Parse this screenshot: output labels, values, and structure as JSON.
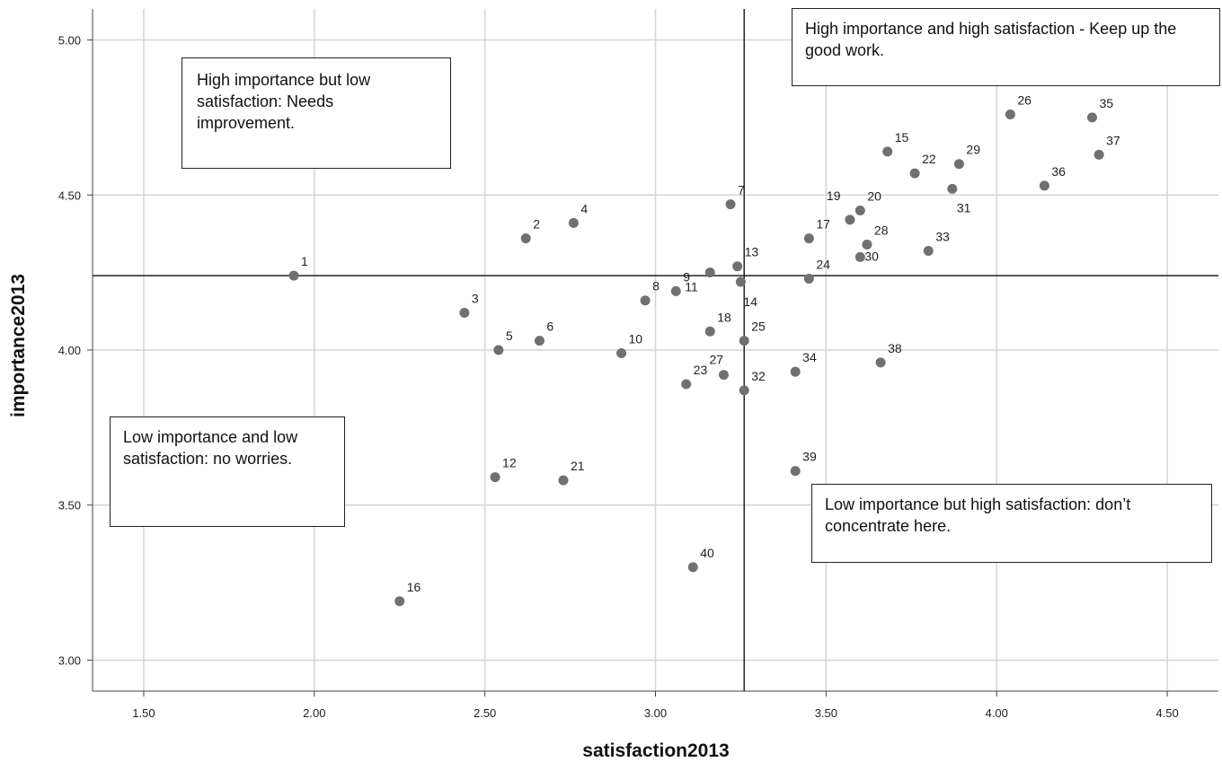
{
  "chart_data": {
    "type": "scatter",
    "xlabel": "satisfaction2013",
    "ylabel": "importance2013",
    "xlim": [
      1.35,
      4.65
    ],
    "ylim": [
      2.9,
      5.1
    ],
    "xticks": [
      "1.50",
      "2.00",
      "2.50",
      "3.00",
      "3.50",
      "4.00",
      "4.50"
    ],
    "yticks": [
      "3.00",
      "3.50",
      "4.00",
      "4.50",
      "5.00"
    ],
    "grid": true,
    "point_color": "#707070",
    "reference_lines": {
      "x": 3.26,
      "y": 4.24
    },
    "points": [
      {
        "label": "1",
        "x": 1.94,
        "y": 4.24
      },
      {
        "label": "2",
        "x": 2.62,
        "y": 4.36
      },
      {
        "label": "3",
        "x": 2.44,
        "y": 4.12
      },
      {
        "label": "4",
        "x": 2.76,
        "y": 4.41
      },
      {
        "label": "5",
        "x": 2.54,
        "y": 4.0
      },
      {
        "label": "6",
        "x": 2.66,
        "y": 4.03
      },
      {
        "label": "7",
        "x": 3.22,
        "y": 4.47
      },
      {
        "label": "8",
        "x": 2.97,
        "y": 4.16
      },
      {
        "label": "9",
        "x": 3.06,
        "y": 4.19
      },
      {
        "label": "10",
        "x": 2.9,
        "y": 3.99
      },
      {
        "label": "11",
        "x": 3.16,
        "y": 4.25
      },
      {
        "label": "12",
        "x": 2.53,
        "y": 3.59
      },
      {
        "label": "13",
        "x": 3.24,
        "y": 4.27
      },
      {
        "label": "14",
        "x": 3.25,
        "y": 4.22
      },
      {
        "label": "15",
        "x": 3.68,
        "y": 4.64
      },
      {
        "label": "16",
        "x": 2.25,
        "y": 3.19
      },
      {
        "label": "17",
        "x": 3.45,
        "y": 4.36
      },
      {
        "label": "18",
        "x": 3.16,
        "y": 4.06
      },
      {
        "label": "19",
        "x": 3.57,
        "y": 4.42
      },
      {
        "label": "20",
        "x": 3.6,
        "y": 4.45
      },
      {
        "label": "21",
        "x": 2.73,
        "y": 3.58
      },
      {
        "label": "22",
        "x": 3.76,
        "y": 4.57
      },
      {
        "label": "23",
        "x": 3.09,
        "y": 3.89
      },
      {
        "label": "24",
        "x": 3.45,
        "y": 4.23
      },
      {
        "label": "25",
        "x": 3.26,
        "y": 4.03
      },
      {
        "label": "26",
        "x": 4.04,
        "y": 4.76
      },
      {
        "label": "27",
        "x": 3.2,
        "y": 3.92
      },
      {
        "label": "28",
        "x": 3.62,
        "y": 4.34
      },
      {
        "label": "29",
        "x": 3.89,
        "y": 4.6
      },
      {
        "label": "30",
        "x": 3.6,
        "y": 4.3
      },
      {
        "label": "31",
        "x": 3.87,
        "y": 4.52
      },
      {
        "label": "32",
        "x": 3.26,
        "y": 3.87
      },
      {
        "label": "33",
        "x": 3.8,
        "y": 4.32
      },
      {
        "label": "34",
        "x": 3.41,
        "y": 3.93
      },
      {
        "label": "35",
        "x": 4.28,
        "y": 4.75
      },
      {
        "label": "36",
        "x": 4.14,
        "y": 4.53
      },
      {
        "label": "37",
        "x": 4.3,
        "y": 4.63
      },
      {
        "label": "38",
        "x": 3.66,
        "y": 3.96
      },
      {
        "label": "39",
        "x": 3.41,
        "y": 3.61
      },
      {
        "label": "40",
        "x": 3.11,
        "y": 3.3
      }
    ]
  },
  "annotations": {
    "high_imp_low_sat": "High importance but low satisfaction: Needs improvement.",
    "high_imp_high_sat": "High importance and high satisfaction - Keep up the good work.",
    "low_imp_low_sat": "Low importance and low satisfaction: no worries.",
    "low_imp_high_sat": "Low importance but high satisfaction: don’t concentrate here."
  }
}
